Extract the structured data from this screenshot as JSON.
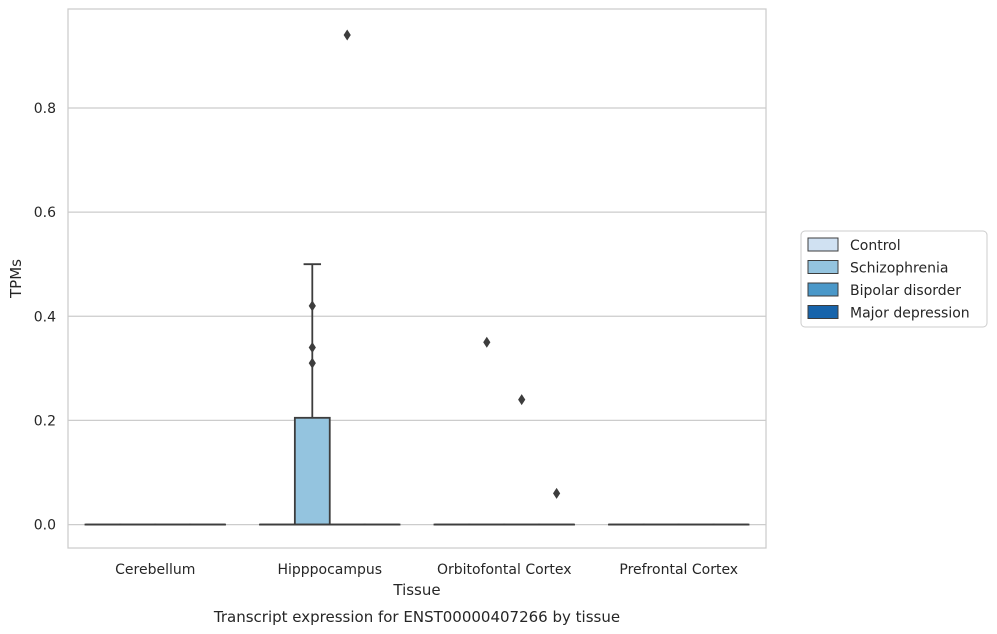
{
  "chart_data": {
    "type": "box",
    "title": "",
    "caption": "Transcript expression for ENST00000407266 by tissue",
    "xlabel": "Tissue",
    "ylabel": "TPMs",
    "categories": [
      "Cerebellum",
      "Hipppocampus",
      "Orbitofontal Cortex",
      "Prefrontal Cortex"
    ],
    "ylim": [
      -0.045,
      0.99
    ],
    "yticks": [
      0.0,
      0.2,
      0.4,
      0.6,
      0.8
    ],
    "ytick_labels": [
      "0.0",
      "0.2",
      "0.4",
      "0.6",
      "0.8"
    ],
    "grid": true,
    "legend_position": "right",
    "series": [
      {
        "name": "Control",
        "color": "#d0e1f2",
        "boxes": [
          {
            "category": "Cerebellum",
            "min": 0,
            "q1": 0,
            "median": 0,
            "q3": 0,
            "max": 0,
            "outliers": []
          },
          {
            "category": "Hipppocampus",
            "min": 0,
            "q1": 0,
            "median": 0,
            "q3": 0,
            "max": 0,
            "outliers": []
          },
          {
            "category": "Orbitofontal Cortex",
            "min": 0,
            "q1": 0,
            "median": 0,
            "q3": 0,
            "max": 0,
            "outliers": []
          },
          {
            "category": "Prefrontal Cortex",
            "min": 0,
            "q1": 0,
            "median": 0,
            "q3": 0,
            "max": 0,
            "outliers": []
          }
        ]
      },
      {
        "name": "Schizophrenia",
        "color": "#94c4df",
        "boxes": [
          {
            "category": "Cerebellum",
            "min": 0,
            "q1": 0,
            "median": 0,
            "q3": 0,
            "max": 0,
            "outliers": []
          },
          {
            "category": "Hipppocampus",
            "min": 0,
            "q1": 0,
            "median": 0,
            "q3": 0.205,
            "max": 0.5,
            "outliers": [
              0.42,
              0.34,
              0.31
            ]
          },
          {
            "category": "Orbitofontal Cortex",
            "min": 0,
            "q1": 0,
            "median": 0,
            "q3": 0,
            "max": 0,
            "outliers": [
              0.35
            ]
          },
          {
            "category": "Prefrontal Cortex",
            "min": 0,
            "q1": 0,
            "median": 0,
            "q3": 0,
            "max": 0,
            "outliers": []
          }
        ]
      },
      {
        "name": "Bipolar disorder",
        "color": "#4a98c9",
        "boxes": [
          {
            "category": "Cerebellum",
            "min": 0,
            "q1": 0,
            "median": 0,
            "q3": 0,
            "max": 0,
            "outliers": []
          },
          {
            "category": "Hipppocampus",
            "min": 0,
            "q1": 0,
            "median": 0,
            "q3": 0,
            "max": 0,
            "outliers": [
              0.94
            ]
          },
          {
            "category": "Orbitofontal Cortex",
            "min": 0,
            "q1": 0,
            "median": 0,
            "q3": 0,
            "max": 0,
            "outliers": [
              0.24
            ]
          },
          {
            "category": "Prefrontal Cortex",
            "min": 0,
            "q1": 0,
            "median": 0,
            "q3": 0,
            "max": 0,
            "outliers": []
          }
        ]
      },
      {
        "name": "Major depression",
        "color": "#1764ab",
        "boxes": [
          {
            "category": "Cerebellum",
            "min": 0,
            "q1": 0,
            "median": 0,
            "q3": 0,
            "max": 0,
            "outliers": []
          },
          {
            "category": "Hipppocampus",
            "min": 0,
            "q1": 0,
            "median": 0,
            "q3": 0,
            "max": 0,
            "outliers": []
          },
          {
            "category": "Orbitofontal Cortex",
            "min": 0,
            "q1": 0,
            "median": 0,
            "q3": 0,
            "max": 0,
            "outliers": [
              0.06
            ]
          },
          {
            "category": "Prefrontal Cortex",
            "min": 0,
            "q1": 0,
            "median": 0,
            "q3": 0,
            "max": 0,
            "outliers": []
          }
        ]
      }
    ]
  }
}
